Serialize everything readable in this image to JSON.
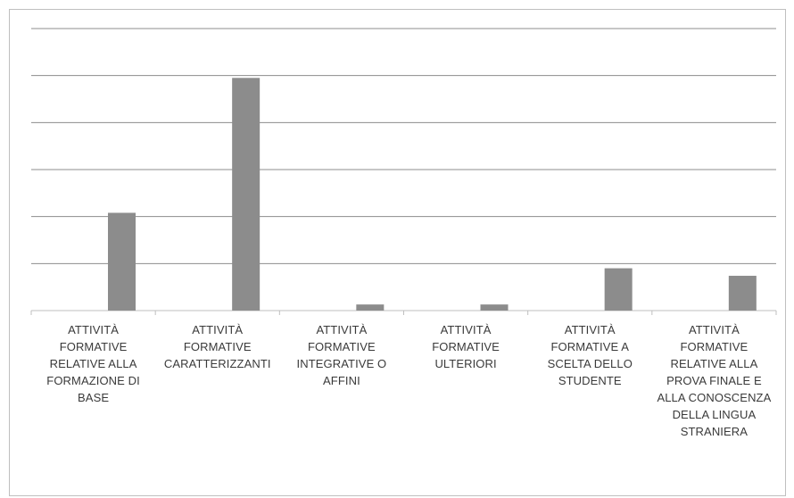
{
  "chart_data": {
    "type": "bar",
    "title": "",
    "xlabel": "",
    "ylabel": "",
    "categories": [
      "ATTIVITÀ FORMATIVE RELATIVE ALLA FORMAZIONE DI BASE",
      "ATTIVITÀ FORMATIVE CARATTERIZZANTI",
      "ATTIVITÀ FORMATIVE INTEGRATIVE O AFFINI",
      "ATTIVITÀ FORMATIVE ULTERIORI",
      "ATTIVITÀ FORMATIVE A SCELTA DELLO STUDENTE",
      "ATTIVITÀ FORMATIVE RELATIVE ALLA PROVA FINALE E ALLA CONOSCENZA DELLA LINGUA STRANIERA"
    ],
    "values": [
      2.08,
      4.95,
      0.13,
      0.13,
      0.9,
      0.74
    ],
    "ylim": [
      0,
      6
    ],
    "gridlines": true,
    "bar_color": "#8c8c8c",
    "grid_color": "#8c8c8c",
    "axis_color": "#bfbfbf"
  }
}
